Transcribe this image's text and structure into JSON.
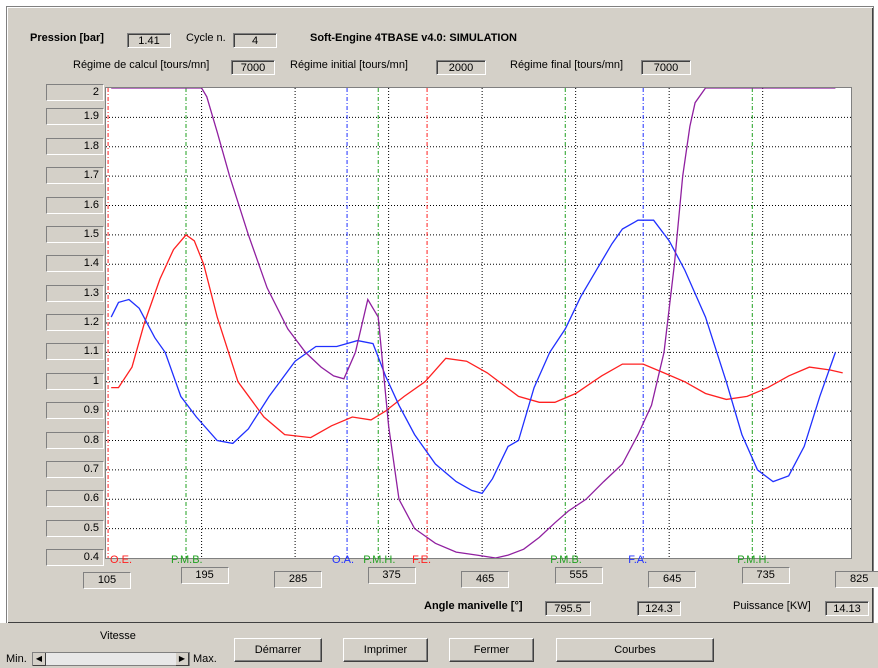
{
  "header": {
    "pression_label": "Pression [bar]",
    "pression_value": "1.41",
    "cycle_label": "Cycle n.",
    "cycle_value": "4",
    "title": "Soft-Engine 4TBASE v4.0: SIMULATION",
    "regime_calcul_label": "Régime de calcul [tours/mn]",
    "regime_calcul_value": "7000",
    "regime_initial_label": "Régime initial [tours/mn]",
    "regime_initial_value": "2000",
    "regime_final_label": "Régime final [tours/mn]",
    "regime_final_value": "7000"
  },
  "footer": {
    "angle_label": "Angle manivelle [°]",
    "angle_value": "795.5",
    "second_value": "124.3",
    "puissance_label": "Puissance [KW]",
    "puissance_value": "14.13"
  },
  "controls": {
    "vitesse_label": "Vitesse",
    "min_label": "Min.",
    "max_label": "Max.",
    "demarrer": "Démarrer",
    "imprimer": "Imprimer",
    "fermer": "Fermer",
    "courbes": "Courbes"
  },
  "colors": {
    "red": "#ff2020",
    "blue": "#2030ff",
    "purple": "#9020a0",
    "green": "#20a020",
    "black": "#000000"
  },
  "chart_data": {
    "type": "line",
    "title": "",
    "xlabel": "Angle manivelle [°]",
    "ylabel": "Pression [bar]",
    "xlim": [
      103,
      820
    ],
    "ylim": [
      0.4,
      2.0
    ],
    "x_ticks": [
      "105",
      "195",
      "285",
      "375",
      "465",
      "555",
      "645",
      "735",
      "825"
    ],
    "y_ticks": [
      "2",
      "1.9",
      "1.8",
      "1.7",
      "1.6",
      "1.5",
      "1.4",
      "1.3",
      "1.2",
      "1.1",
      "1",
      "0.9",
      "0.8",
      "0.7",
      "0.6",
      "0.5",
      "0.4"
    ],
    "grid": true,
    "events": [
      {
        "label": "O.E.",
        "x": 105,
        "color": "red"
      },
      {
        "label": "P.M.B.",
        "x": 180,
        "color": "green"
      },
      {
        "label": "O.A.",
        "x": 335,
        "color": "blue"
      },
      {
        "label": "P.M.H.",
        "x": 365,
        "color": "green"
      },
      {
        "label": "F.E.",
        "x": 412,
        "color": "red"
      },
      {
        "label": "P.M.B.",
        "x": 545,
        "color": "green"
      },
      {
        "label": "F.A.",
        "x": 620,
        "color": "blue"
      },
      {
        "label": "P.M.H.",
        "x": 725,
        "color": "green"
      }
    ],
    "black_gridlines_x": [
      195,
      285,
      375,
      465,
      555,
      645,
      735
    ],
    "series": [
      {
        "color": "red",
        "x": [
          108,
          115,
          128,
          140,
          155,
          168,
          180,
          188,
          197,
          210,
          230,
          255,
          275,
          300,
          320,
          340,
          358,
          372,
          390,
          410,
          430,
          450,
          470,
          500,
          520,
          535,
          555,
          580,
          600,
          620,
          640,
          660,
          680,
          700,
          720,
          740,
          760,
          780,
          800,
          812
        ],
        "y": [
          0.98,
          0.98,
          1.05,
          1.2,
          1.35,
          1.45,
          1.5,
          1.48,
          1.4,
          1.22,
          1.0,
          0.88,
          0.82,
          0.81,
          0.85,
          0.88,
          0.87,
          0.9,
          0.95,
          1.0,
          1.08,
          1.07,
          1.03,
          0.95,
          0.93,
          0.93,
          0.96,
          1.02,
          1.06,
          1.06,
          1.03,
          1.0,
          0.96,
          0.94,
          0.95,
          0.98,
          1.02,
          1.05,
          1.04,
          1.03
        ]
      },
      {
        "color": "blue",
        "x": [
          108,
          115,
          125,
          135,
          150,
          160,
          175,
          190,
          210,
          225,
          240,
          260,
          285,
          305,
          325,
          345,
          360,
          372,
          385,
          400,
          420,
          440,
          455,
          465,
          475,
          490,
          500,
          515,
          530,
          545,
          560,
          575,
          590,
          600,
          615,
          630,
          645,
          660,
          680,
          700,
          715,
          730,
          745,
          760,
          775,
          790,
          805
        ],
        "y": [
          1.22,
          1.27,
          1.28,
          1.25,
          1.15,
          1.1,
          0.95,
          0.88,
          0.8,
          0.79,
          0.84,
          0.95,
          1.07,
          1.12,
          1.12,
          1.14,
          1.13,
          1.02,
          0.92,
          0.82,
          0.72,
          0.66,
          0.63,
          0.62,
          0.67,
          0.78,
          0.8,
          0.98,
          1.1,
          1.18,
          1.29,
          1.38,
          1.47,
          1.52,
          1.55,
          1.55,
          1.48,
          1.38,
          1.22,
          1.0,
          0.82,
          0.7,
          0.66,
          0.68,
          0.78,
          0.95,
          1.1
        ]
      },
      {
        "color": "purple",
        "x": [
          108,
          195,
          200,
          210,
          222,
          240,
          258,
          278,
          295,
          310,
          322,
          332,
          343,
          355,
          365,
          375,
          385,
          400,
          420,
          440,
          460,
          478,
          490,
          505,
          520,
          535,
          548,
          565,
          582,
          600,
          615,
          628,
          640,
          650,
          658,
          665,
          670,
          680,
          760,
          805
        ],
        "y": [
          2.0,
          2.0,
          1.97,
          1.85,
          1.7,
          1.5,
          1.32,
          1.18,
          1.1,
          1.05,
          1.02,
          1.01,
          1.1,
          1.28,
          1.22,
          0.85,
          0.6,
          0.5,
          0.45,
          0.42,
          0.41,
          0.4,
          0.41,
          0.43,
          0.47,
          0.52,
          0.56,
          0.6,
          0.66,
          0.72,
          0.82,
          0.92,
          1.1,
          1.4,
          1.7,
          1.87,
          1.95,
          2.0,
          2.0,
          2.0
        ]
      }
    ]
  }
}
